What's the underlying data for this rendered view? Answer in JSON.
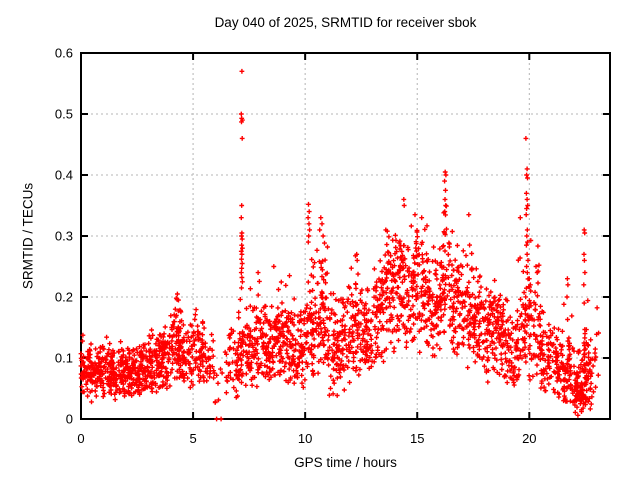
{
  "page": {
    "background": "#ffffff"
  },
  "chart_data": {
    "type": "scatter",
    "title": "Day 040 of 2025, SRMTID for receiver sbok",
    "xlabel": "GPS time / hours",
    "ylabel": "SRMTID / TECUs",
    "series_name": "SRMTID",
    "xlim": [
      0,
      23.6
    ],
    "ylim": [
      0,
      0.6
    ],
    "xticks": [
      0,
      5,
      10,
      15,
      20
    ],
    "xtick_labels": [
      "0",
      "5",
      "10",
      "15",
      "20"
    ],
    "yticks": [
      0,
      0.1,
      0.2,
      0.3,
      0.4,
      0.5,
      0.6
    ],
    "ytick_labels": [
      "0",
      "0.1",
      "0.2",
      "0.3",
      "0.4",
      "0.5",
      "0.6"
    ],
    "grid": true,
    "grid_style": "dotted",
    "grid_color": "#b4b4b4",
    "frame_color": "#000000",
    "legend": "none",
    "marker": {
      "shape": "plus",
      "color": "#ff0000",
      "size": 5
    },
    "seed": 12345,
    "note": "Cloud of ~2800 points too dense to enumerate; density_bins = [x_start, x_end, count, y_mean, y_sd, y_min, y_max] in hours/TECUs describe the scatter band; outlier_points are the individually distinguishable points.",
    "density_bins": [
      [
        0.0,
        0.5,
        70,
        0.08,
        0.022,
        0.025,
        0.14
      ],
      [
        0.5,
        1.0,
        70,
        0.075,
        0.02,
        0.03,
        0.13
      ],
      [
        1.0,
        1.5,
        70,
        0.08,
        0.022,
        0.03,
        0.14
      ],
      [
        1.5,
        2.0,
        70,
        0.07,
        0.022,
        0.025,
        0.13
      ],
      [
        2.0,
        2.5,
        70,
        0.075,
        0.02,
        0.03,
        0.12
      ],
      [
        2.5,
        3.0,
        70,
        0.08,
        0.022,
        0.04,
        0.13
      ],
      [
        3.0,
        3.5,
        70,
        0.09,
        0.025,
        0.04,
        0.15
      ],
      [
        3.5,
        4.0,
        70,
        0.1,
        0.03,
        0.05,
        0.17
      ],
      [
        4.0,
        4.5,
        75,
        0.115,
        0.038,
        0.05,
        0.2
      ],
      [
        4.5,
        5.0,
        55,
        0.1,
        0.03,
        0.05,
        0.17
      ],
      [
        5.0,
        5.5,
        60,
        0.11,
        0.03,
        0.06,
        0.18
      ],
      [
        5.5,
        5.9,
        25,
        0.09,
        0.028,
        0.04,
        0.14
      ],
      [
        5.9,
        6.4,
        10,
        0.06,
        0.028,
        0.02,
        0.1
      ],
      [
        6.4,
        7.0,
        40,
        0.09,
        0.035,
        0.03,
        0.17
      ],
      [
        7.0,
        7.5,
        60,
        0.11,
        0.04,
        0.05,
        0.21
      ],
      [
        7.5,
        8.0,
        60,
        0.12,
        0.04,
        0.05,
        0.24
      ],
      [
        8.0,
        8.5,
        65,
        0.12,
        0.035,
        0.06,
        0.2
      ],
      [
        8.5,
        9.0,
        65,
        0.13,
        0.04,
        0.07,
        0.25
      ],
      [
        9.0,
        9.5,
        65,
        0.13,
        0.04,
        0.06,
        0.22
      ],
      [
        9.5,
        10.0,
        60,
        0.12,
        0.04,
        0.05,
        0.21
      ],
      [
        10.0,
        10.5,
        65,
        0.15,
        0.055,
        0.07,
        0.3
      ],
      [
        10.5,
        11.0,
        65,
        0.17,
        0.06,
        0.07,
        0.33
      ],
      [
        11.0,
        11.5,
        60,
        0.12,
        0.045,
        0.035,
        0.22
      ],
      [
        11.5,
        12.0,
        60,
        0.13,
        0.045,
        0.04,
        0.23
      ],
      [
        12.0,
        12.5,
        60,
        0.15,
        0.05,
        0.07,
        0.27
      ],
      [
        12.5,
        13.0,
        60,
        0.14,
        0.04,
        0.08,
        0.23
      ],
      [
        13.0,
        13.5,
        60,
        0.17,
        0.05,
        0.09,
        0.28
      ],
      [
        13.5,
        14.0,
        65,
        0.21,
        0.05,
        0.11,
        0.31
      ],
      [
        14.0,
        14.5,
        65,
        0.22,
        0.055,
        0.12,
        0.36
      ],
      [
        14.5,
        15.0,
        65,
        0.21,
        0.05,
        0.11,
        0.33
      ],
      [
        15.0,
        15.5,
        60,
        0.2,
        0.05,
        0.1,
        0.33
      ],
      [
        15.5,
        16.0,
        60,
        0.18,
        0.05,
        0.09,
        0.3
      ],
      [
        16.0,
        16.5,
        65,
        0.22,
        0.06,
        0.11,
        0.37
      ],
      [
        16.5,
        17.0,
        60,
        0.19,
        0.05,
        0.1,
        0.31
      ],
      [
        17.0,
        17.5,
        60,
        0.18,
        0.055,
        0.08,
        0.33
      ],
      [
        17.5,
        18.0,
        60,
        0.16,
        0.05,
        0.07,
        0.28
      ],
      [
        18.0,
        18.5,
        65,
        0.14,
        0.045,
        0.06,
        0.25
      ],
      [
        18.5,
        19.0,
        65,
        0.13,
        0.04,
        0.06,
        0.23
      ],
      [
        19.0,
        19.5,
        60,
        0.12,
        0.04,
        0.05,
        0.21
      ],
      [
        19.5,
        20.0,
        55,
        0.15,
        0.06,
        0.06,
        0.33
      ],
      [
        20.0,
        20.5,
        55,
        0.15,
        0.06,
        0.06,
        0.31
      ],
      [
        20.5,
        21.0,
        55,
        0.1,
        0.035,
        0.04,
        0.18
      ],
      [
        21.0,
        21.5,
        55,
        0.09,
        0.03,
        0.035,
        0.16
      ],
      [
        21.5,
        22.0,
        60,
        0.08,
        0.035,
        0.02,
        0.22
      ],
      [
        22.0,
        22.4,
        70,
        0.05,
        0.025,
        0.005,
        0.12
      ],
      [
        22.4,
        22.8,
        70,
        0.07,
        0.04,
        0.01,
        0.2
      ],
      [
        22.8,
        23.1,
        12,
        0.1,
        0.05,
        0.04,
        0.2
      ]
    ],
    "outlier_points": [
      [
        6.05,
        0.0
      ],
      [
        6.25,
        0.0
      ],
      [
        7.18,
        0.57
      ],
      [
        7.15,
        0.5
      ],
      [
        7.17,
        0.493
      ],
      [
        7.2,
        0.49
      ],
      [
        7.16,
        0.487
      ],
      [
        7.19,
        0.46
      ],
      [
        7.17,
        0.35
      ],
      [
        7.15,
        0.33
      ],
      [
        7.18,
        0.305
      ],
      [
        7.16,
        0.3
      ],
      [
        7.19,
        0.295
      ],
      [
        7.17,
        0.285
      ],
      [
        7.2,
        0.28
      ],
      [
        7.15,
        0.275
      ],
      [
        7.18,
        0.27
      ],
      [
        7.16,
        0.262
      ],
      [
        7.19,
        0.255
      ],
      [
        7.17,
        0.247
      ],
      [
        7.15,
        0.24
      ],
      [
        7.18,
        0.232
      ],
      [
        7.2,
        0.225
      ],
      [
        7.16,
        0.215
      ],
      [
        4.3,
        0.205
      ],
      [
        4.25,
        0.198
      ],
      [
        4.35,
        0.195
      ],
      [
        7.9,
        0.24
      ],
      [
        8.6,
        0.25
      ],
      [
        9.3,
        0.235
      ],
      [
        10.15,
        0.352
      ],
      [
        10.18,
        0.34
      ],
      [
        10.13,
        0.33
      ],
      [
        10.17,
        0.32
      ],
      [
        10.2,
        0.31
      ],
      [
        10.16,
        0.3
      ],
      [
        10.14,
        0.29
      ],
      [
        10.7,
        0.33
      ],
      [
        10.75,
        0.32
      ],
      [
        10.65,
        0.31
      ],
      [
        10.8,
        0.3
      ],
      [
        12.3,
        0.27
      ],
      [
        12.32,
        0.26
      ],
      [
        13.6,
        0.31
      ],
      [
        14.4,
        0.36
      ],
      [
        14.42,
        0.35
      ],
      [
        14.9,
        0.335
      ],
      [
        15.2,
        0.33
      ],
      [
        16.25,
        0.405
      ],
      [
        16.28,
        0.4
      ],
      [
        16.22,
        0.39
      ],
      [
        16.26,
        0.375
      ],
      [
        16.24,
        0.36
      ],
      [
        16.27,
        0.35
      ],
      [
        16.23,
        0.34
      ],
      [
        17.3,
        0.335
      ],
      [
        19.85,
        0.46
      ],
      [
        19.9,
        0.41
      ],
      [
        19.88,
        0.4
      ],
      [
        19.92,
        0.395
      ],
      [
        19.87,
        0.37
      ],
      [
        19.9,
        0.36
      ],
      [
        19.93,
        0.35
      ],
      [
        19.88,
        0.345
      ],
      [
        19.86,
        0.335
      ],
      [
        19.6,
        0.33
      ],
      [
        19.91,
        0.31
      ],
      [
        19.89,
        0.3
      ],
      [
        19.92,
        0.29
      ],
      [
        19.87,
        0.285
      ],
      [
        19.9,
        0.27
      ],
      [
        19.94,
        0.26
      ],
      [
        19.88,
        0.25
      ],
      [
        19.91,
        0.24
      ],
      [
        20.0,
        0.23
      ],
      [
        20.05,
        0.22
      ],
      [
        20.3,
        0.25
      ],
      [
        20.35,
        0.24
      ],
      [
        21.7,
        0.23
      ],
      [
        21.72,
        0.22
      ],
      [
        21.68,
        0.2
      ],
      [
        22.45,
        0.31
      ],
      [
        22.47,
        0.305
      ],
      [
        22.44,
        0.27
      ],
      [
        22.46,
        0.26
      ],
      [
        22.48,
        0.24
      ],
      [
        22.43,
        0.22
      ],
      [
        22.45,
        0.19
      ]
    ]
  }
}
